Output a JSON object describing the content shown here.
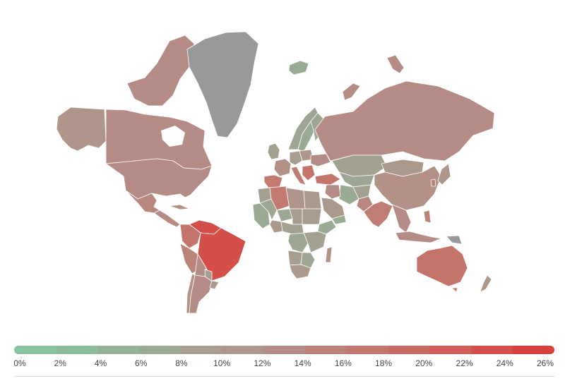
{
  "map": {
    "no_data_color": "#999999",
    "border_color": "#ffffff",
    "regions": [
      {
        "name": "Alaska",
        "value": 11
      },
      {
        "name": "Canada",
        "value": 13
      },
      {
        "name": "Canadian Arctic Islands",
        "value": 13
      },
      {
        "name": "Greenland",
        "value": null
      },
      {
        "name": "Iceland",
        "value": 6
      },
      {
        "name": "United States",
        "value": 13
      },
      {
        "name": "Mexico",
        "value": 14
      },
      {
        "name": "Central America",
        "value": 13
      },
      {
        "name": "Cuba",
        "value": 12
      },
      {
        "name": "Venezuela",
        "value": 24
      },
      {
        "name": "Colombia",
        "value": 18
      },
      {
        "name": "Peru",
        "value": 15
      },
      {
        "name": "Brazil",
        "value": 24
      },
      {
        "name": "Bolivia",
        "value": 13
      },
      {
        "name": "Paraguay",
        "value": 9
      },
      {
        "name": "Argentina",
        "value": 13
      },
      {
        "name": "Chile",
        "value": 12
      },
      {
        "name": "Uruguay",
        "value": 10
      },
      {
        "name": "Norway",
        "value": 7
      },
      {
        "name": "Sweden",
        "value": 6
      },
      {
        "name": "Finland",
        "value": 7
      },
      {
        "name": "United Kingdom",
        "value": 8
      },
      {
        "name": "France",
        "value": 12
      },
      {
        "name": "Spain",
        "value": 17
      },
      {
        "name": "Germany",
        "value": 9
      },
      {
        "name": "Italy",
        "value": 16
      },
      {
        "name": "Poland",
        "value": 11
      },
      {
        "name": "Ukraine",
        "value": 13
      },
      {
        "name": "Balkans",
        "value": 18
      },
      {
        "name": "Turkey",
        "value": 18
      },
      {
        "name": "Russia",
        "value": 13
      },
      {
        "name": "Kazakhstan",
        "value": 8
      },
      {
        "name": "Central Asia",
        "value": 7
      },
      {
        "name": "Mongolia",
        "value": 10
      },
      {
        "name": "China",
        "value": 12
      },
      {
        "name": "Iran",
        "value": 6
      },
      {
        "name": "Afghanistan",
        "value": 8
      },
      {
        "name": "Pakistan",
        "value": 14
      },
      {
        "name": "India",
        "value": 16
      },
      {
        "name": "Saudi Arabia",
        "value": 10
      },
      {
        "name": "Yemen",
        "value": 6
      },
      {
        "name": "Iraq",
        "value": 13
      },
      {
        "name": "Southeast Asia",
        "value": 13
      },
      {
        "name": "Japan",
        "value": 11
      },
      {
        "name": "South Korea",
        "value": 15
      },
      {
        "name": "Indonesia",
        "value": 13
      },
      {
        "name": "Philippines",
        "value": 15
      },
      {
        "name": "Papua New Guinea",
        "value": null
      },
      {
        "name": "Morocco",
        "value": 8
      },
      {
        "name": "Algeria",
        "value": 17
      },
      {
        "name": "Libya",
        "value": 11
      },
      {
        "name": "Egypt",
        "value": 10
      },
      {
        "name": "West Africa",
        "value": 6
      },
      {
        "name": "Mali",
        "value": 7
      },
      {
        "name": "Niger",
        "value": 7
      },
      {
        "name": "Chad",
        "value": 9
      },
      {
        "name": "Sudan",
        "value": 9
      },
      {
        "name": "Nigeria",
        "value": 10
      },
      {
        "name": "Ethiopia",
        "value": 6
      },
      {
        "name": "Central Africa",
        "value": 8
      },
      {
        "name": "DR Congo",
        "value": 7
      },
      {
        "name": "East Africa",
        "value": 8
      },
      {
        "name": "Angola",
        "value": 9
      },
      {
        "name": "Southern Africa",
        "value": 7
      },
      {
        "name": "South Africa",
        "value": 10
      },
      {
        "name": "Madagascar",
        "value": 12
      },
      {
        "name": "Australia",
        "value": 18
      },
      {
        "name": "Tasmania",
        "value": 18
      },
      {
        "name": "New Zealand",
        "value": 11
      }
    ]
  },
  "legend": {
    "colors": [
      "#88c4a0",
      "#8cbc9a",
      "#94b296",
      "#9ca994",
      "#a69f90",
      "#ae968a",
      "#b58c85",
      "#bc8279",
      "#c3786f",
      "#c96c66",
      "#cf5f59",
      "#d44f4b",
      "#d7403d"
    ],
    "ticks": [
      "0%",
      "2%",
      "4%",
      "6%",
      "8%",
      "10%",
      "12%",
      "14%",
      "16%",
      "18%",
      "20%",
      "22%",
      "24%",
      "26%"
    ]
  }
}
